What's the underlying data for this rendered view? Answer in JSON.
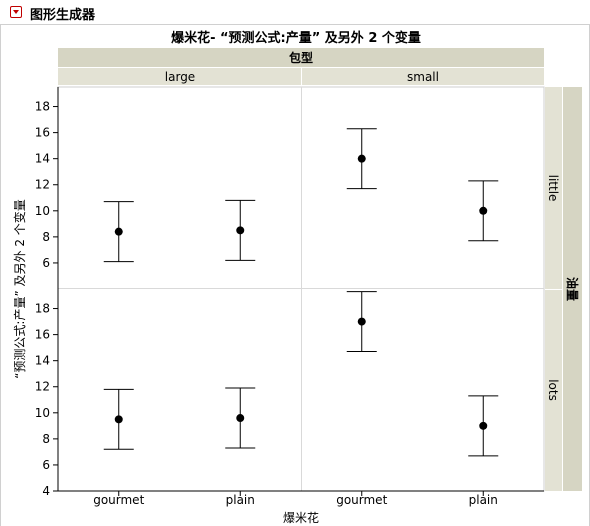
{
  "panel": {
    "title": "图形生成器"
  },
  "chart_data": {
    "type": "scatter",
    "title": "爆米花- “预测公式:产量” 及另外 2 个变量",
    "xlabel": "爆米花",
    "ylabel": "“预测公式:产量” 及另外 2 个变量",
    "column_group_title": "包型",
    "row_group_title": "油量",
    "x_categories": [
      "gourmet",
      "plain"
    ],
    "column_groups": [
      "large",
      "small"
    ],
    "row_groups": [
      "little",
      "lots"
    ],
    "ylim": [
      4,
      19.5
    ],
    "yticks": [
      4,
      6,
      8,
      10,
      12,
      14,
      16,
      18
    ],
    "panels": [
      {
        "row": "little",
        "column": "large",
        "points": [
          {
            "x": "gourmet",
            "y": 8.4,
            "low": 6.1,
            "high": 10.7
          },
          {
            "x": "plain",
            "y": 8.5,
            "low": 6.2,
            "high": 10.8
          }
        ]
      },
      {
        "row": "little",
        "column": "small",
        "points": [
          {
            "x": "gourmet",
            "y": 14.0,
            "low": 11.7,
            "high": 16.3
          },
          {
            "x": "plain",
            "y": 10.0,
            "low": 7.7,
            "high": 12.3
          }
        ]
      },
      {
        "row": "lots",
        "column": "large",
        "points": [
          {
            "x": "gourmet",
            "y": 9.5,
            "low": 7.2,
            "high": 11.8
          },
          {
            "x": "plain",
            "y": 9.6,
            "low": 7.3,
            "high": 11.9
          }
        ]
      },
      {
        "row": "lots",
        "column": "small",
        "points": [
          {
            "x": "gourmet",
            "y": 17.0,
            "low": 14.7,
            "high": 19.3
          },
          {
            "x": "plain",
            "y": 9.0,
            "low": 6.7,
            "high": 11.3
          }
        ]
      }
    ],
    "colors": {
      "strip_fill": "#e3e2d4",
      "strip_title_fill": "#d6d5c3",
      "grid": "#d9d9d9",
      "marker": "#000000"
    }
  }
}
